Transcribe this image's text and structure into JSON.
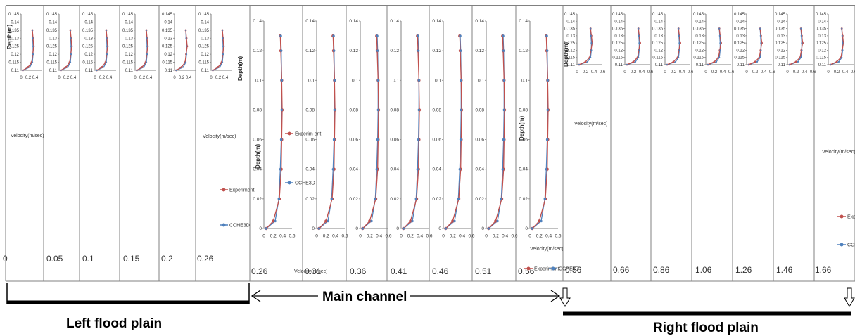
{
  "sections": {
    "left": "Left flood plain",
    "main": "Main channel",
    "right": "Right flood plain"
  },
  "colors": {
    "experiment": "#c0504d",
    "ches3d": "#4f81bd",
    "axis": "#808080",
    "divider": "#808080"
  },
  "legend": {
    "experiment": "Experiment",
    "experiment_split": "Experim ent",
    "ches3d": "CCHE3D",
    "experiment_short": "Experime"
  },
  "panel_labels": {
    "left": [
      "0",
      "0.05",
      "0.1",
      "0.15",
      "0.2",
      "0.26"
    ],
    "main": [
      "0.26",
      "0.31",
      "0.36",
      "0.41",
      "0.46",
      "0.51",
      "0.56"
    ],
    "right": [
      "0.56",
      "0.66",
      "0.86",
      "1.06",
      "1.26",
      "1.46",
      "1.66"
    ]
  },
  "axis_titles": {
    "depth": "Depth(m)",
    "velocity": "Velocity(m/sec)"
  },
  "chart_data": {
    "type": "line",
    "xlabel": "Velocity(m/sec)",
    "ylabel": "Depth(m)",
    "floodplain_axes": {
      "xlim": [
        0,
        0.6
      ],
      "ylim": [
        0.11,
        0.145
      ],
      "yticks": [
        "0.145",
        "0.14",
        "0.135",
        "0.13",
        "0.125",
        "0.12",
        "0.115",
        "0.11"
      ]
    },
    "channel_axes": {
      "xlim": [
        0,
        0.6
      ],
      "ylim": [
        0,
        0.14
      ],
      "yticks": [
        "0.14",
        "0.12",
        "0.1",
        "0.08",
        "0.06",
        "0.04",
        "0.02",
        "0"
      ],
      "xticks": [
        "0",
        "0.2",
        "0.4",
        "0.6"
      ]
    },
    "floodplain_profile": {
      "depth": [
        0.11,
        0.112,
        0.115,
        0.12,
        0.125,
        0.13,
        0.135
      ],
      "experiment": [
        0.05,
        0.2,
        0.3,
        0.33,
        0.36,
        0.34,
        0.32
      ],
      "ches3d": [
        0.05,
        0.25,
        0.32,
        0.34,
        0.34,
        0.33,
        0.32
      ]
    },
    "channel_profile": {
      "depth": [
        0,
        0.005,
        0.02,
        0.04,
        0.06,
        0.08,
        0.1,
        0.12,
        0.13
      ],
      "experiment": [
        0.05,
        0.2,
        0.33,
        0.37,
        0.38,
        0.39,
        0.38,
        0.36,
        0.35
      ],
      "ches3d": [
        0.05,
        0.24,
        0.32,
        0.35,
        0.37,
        0.38,
        0.38,
        0.37,
        0.36
      ]
    }
  }
}
